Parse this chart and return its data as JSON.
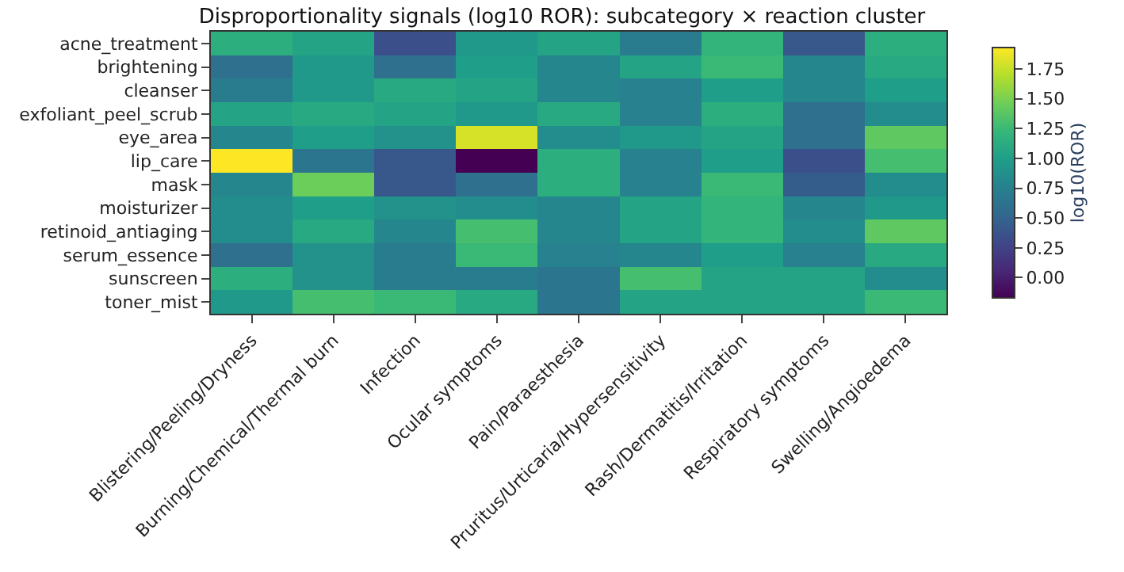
{
  "chart_data": {
    "type": "heatmap",
    "title": "Disproportionality signals (log10 ROR): subcategory × reaction cluster",
    "categories": [
      "Blistering/Peeling/Dryness",
      "Burning/Chemical/Thermal burn",
      "Infection",
      "Ocular symptoms",
      "Pain/Paraesthesia",
      "Pruritus/Urticaria/Hypersensitivity",
      "Rash/Dermatitis/Irritation",
      "Respiratory symptoms",
      "Swelling/Angioedema"
    ],
    "y_categories": [
      "acne_treatment",
      "brightening",
      "cleanser",
      "exfoliant_peel_scrub",
      "eye_area",
      "lip_care",
      "mask",
      "moisturizer",
      "retinoid_antiaging",
      "serum_essence",
      "sunscreen",
      "toner_mist"
    ],
    "cells": [
      [
        1.15,
        1.05,
        0.35,
        0.95,
        1.05,
        0.7,
        1.2,
        0.4,
        1.15
      ],
      [
        0.6,
        0.95,
        0.6,
        1.0,
        0.8,
        1.05,
        1.25,
        0.8,
        1.1
      ],
      [
        0.7,
        0.95,
        1.1,
        1.05,
        0.8,
        0.75,
        1.0,
        0.8,
        1.0
      ],
      [
        1.05,
        1.1,
        1.05,
        0.95,
        1.1,
        0.75,
        1.15,
        0.6,
        0.85
      ],
      [
        0.8,
        1.0,
        0.9,
        1.8,
        0.85,
        0.95,
        1.05,
        0.6,
        1.4
      ],
      [
        1.93,
        0.65,
        0.4,
        -0.17,
        1.15,
        0.75,
        1.0,
        0.35,
        1.3
      ],
      [
        0.8,
        1.45,
        0.4,
        0.6,
        1.15,
        0.75,
        1.25,
        0.45,
        0.85
      ],
      [
        0.85,
        1.0,
        0.9,
        0.85,
        0.8,
        1.05,
        1.2,
        0.8,
        0.95
      ],
      [
        0.85,
        1.1,
        0.8,
        1.3,
        0.8,
        1.05,
        1.2,
        0.85,
        1.4
      ],
      [
        0.6,
        0.9,
        0.7,
        1.25,
        0.75,
        0.8,
        1.0,
        0.75,
        1.1
      ],
      [
        1.15,
        0.9,
        0.7,
        0.7,
        0.65,
        1.3,
        1.05,
        1.05,
        0.85
      ],
      [
        0.95,
        1.3,
        1.25,
        1.1,
        0.65,
        1.05,
        1.05,
        1.05,
        1.25
      ]
    ],
    "clabel": "log10(ROR)",
    "clim": [
      -0.17,
      1.93
    ],
    "cticks": [
      {
        "value": 0,
        "label": "0.00"
      },
      0.25,
      {
        "value": 0.5,
        "label": "0.50"
      },
      0.75,
      {
        "value": 1,
        "label": "1.00"
      },
      1.25,
      {
        "value": 1.5,
        "label": "1.50"
      },
      1.75
    ]
  }
}
